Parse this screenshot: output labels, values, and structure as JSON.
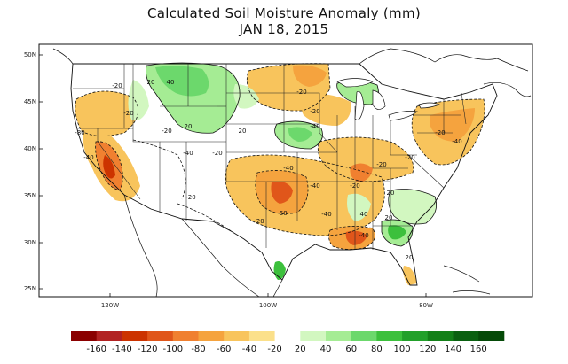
{
  "title": "Calculated Soil Moisture Anomaly (mm)",
  "date": "JAN 18, 2015",
  "lat_ticks": [
    "50N",
    "45N",
    "40N",
    "35N",
    "30N",
    "25N"
  ],
  "lon_ticks": [
    "120W",
    "100W",
    "80W"
  ],
  "contour_labels": [
    "-20",
    "-20",
    "-40",
    "-80",
    "-20",
    "-20",
    "-40",
    "-20",
    "-20",
    "-40",
    "-20",
    "-40",
    "-40",
    "-60",
    "-20",
    "-40",
    "-20",
    "-20",
    "-20",
    "-20",
    "-40",
    "-40",
    "20",
    "20",
    "20",
    "40",
    "40",
    "20",
    "20",
    "20"
  ],
  "colorbar": {
    "labels": [
      "-160",
      "-140",
      "-120",
      "-100",
      "-80",
      "-60",
      "-40",
      "-20",
      "20",
      "40",
      "60",
      "80",
      "100",
      "120",
      "140",
      "160"
    ],
    "colors": [
      "#8b0000",
      "#b22222",
      "#cc3300",
      "#e0561a",
      "#f08030",
      "#f5a33e",
      "#f8c45c",
      "#fbe08a",
      "#ffffff",
      "#d2f7c0",
      "#a5ec94",
      "#6cd86c",
      "#3cc03c",
      "#22a02a",
      "#138018",
      "#0a6010",
      "#054a08"
    ]
  }
}
